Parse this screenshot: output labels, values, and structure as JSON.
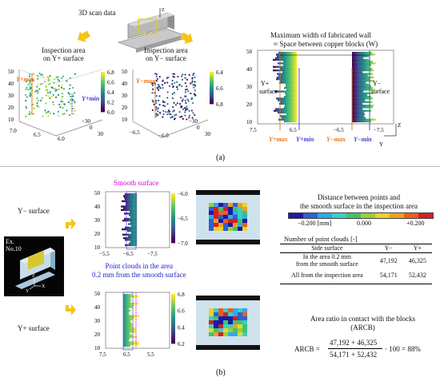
{
  "a": {
    "scan_label": "3D scan data",
    "insp_plus": "Inspection area\non Y+ surface",
    "insp_minus": "Inspection area\non Y− surface",
    "max_width_title": "Maximum width of fabricated wall",
    "max_width_sub": "≈ Space between copper blocks (W)",
    "plot1": {
      "ylab_max": "Y+max",
      "ylab_min": "Y+min",
      "y_ticks": [
        "50",
        "40",
        "30",
        "20",
        "10"
      ],
      "x_ticks": [
        "7.0",
        "6.5",
        "6.0"
      ],
      "z_ticks": [
        "−30",
        "0",
        "30"
      ],
      "cbar": [
        "6.8",
        "6.6",
        "6.4",
        "6.2",
        "6.0"
      ]
    },
    "plot2": {
      "ylab_max": "Y−max",
      "ylab_min": "Y−min",
      "y_ticks": [
        "50",
        "40",
        "30",
        "20",
        "10"
      ],
      "x_ticks": [
        "−6.5",
        "−6.0"
      ],
      "z_ticks": [
        "−30",
        "0",
        "30"
      ],
      "cbar": [
        "6.4",
        "6.6",
        "6.8"
      ]
    },
    "plot3": {
      "y_ticks": [
        "50",
        "40",
        "30",
        "20",
        "10"
      ],
      "x_ticks": [
        "7.5",
        "6.5",
        "−6.5",
        "−7.5"
      ],
      "left_label": "Y+\nsurface",
      "right_label": "Y−\nsurface",
      "bottom_labels": [
        "Y+max",
        "Y+min",
        "Y−max",
        "Y−min"
      ],
      "axis_z": "Z",
      "axis_y": "Y"
    },
    "caption": "(a)"
  },
  "b": {
    "minus_surface": "Y− surface",
    "plus_surface": "Y+ surface",
    "example": "Ex.\nNo.10",
    "smooth_surface": "Smooth surface",
    "point_clouds": "Point clouds in the area\n0.2 mm from the smooth surface",
    "plotA": {
      "y_ticks": [
        "50",
        "40",
        "30",
        "20",
        "10"
      ],
      "x_ticks": [
        "−5.5",
        "−6.5",
        "−7.5"
      ],
      "cbar": [
        "−6.0",
        "−6.5",
        "−7.0"
      ]
    },
    "plotB": {
      "y_ticks": [
        "50",
        "40",
        "30",
        "20",
        "10"
      ],
      "x_ticks": [
        "7.5",
        "6.5",
        "5.5"
      ],
      "cbar": [
        "6.8",
        "6.6",
        "6.4",
        "6.2"
      ]
    },
    "distance_title": "Distance between points and\nthe smooth surface in the inspection area",
    "legend_ticks": [
      "−0.200 [mm]",
      "0.000",
      "+0.200"
    ],
    "legend_colors": [
      "#1a1aa8",
      "#2f5fd6",
      "#33a8e6",
      "#38d0c4",
      "#44c26a",
      "#9ad03a",
      "#e8d42c",
      "#f0a020",
      "#e8601c",
      "#d42020"
    ],
    "table": {
      "title": "Number of point clouds [-]",
      "headers": [
        "Side surface",
        "Y−",
        "Y+"
      ],
      "rows": [
        {
          "label": "In the area 0.2 mm\nfrom the smooth surface",
          "ym": "47,192",
          "yp": "46,325"
        },
        {
          "label": "All from the inspection area",
          "ym": "54,171",
          "yp": "52,432"
        }
      ]
    },
    "arcb_title": "Area ratio in contact with the blocks\n(ARCB)",
    "arcb_lhs": "ARCB =",
    "arcb_num": "47,192 + 46,325",
    "arcb_den": "54,171 + 52,432",
    "arcb_rhs": "· 100 = 88%",
    "axis_z": "Z",
    "axis_y": "Y",
    "caption": "(b)"
  }
}
